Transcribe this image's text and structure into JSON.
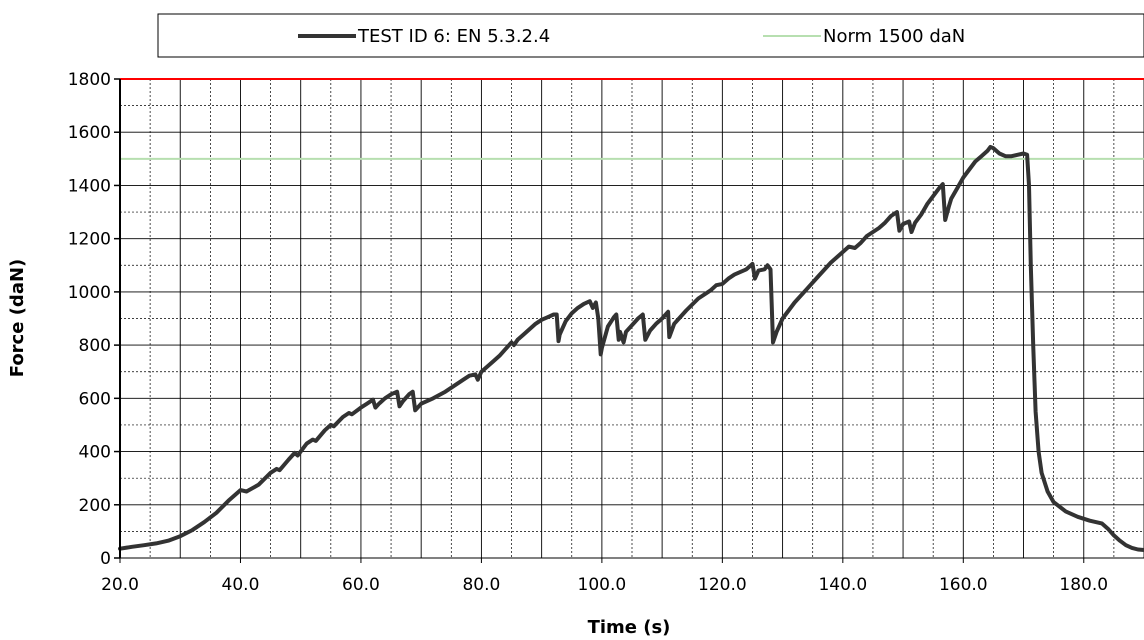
{
  "chart_data": {
    "type": "line",
    "xlabel": "Time (s)",
    "ylabel": "Force (daN)",
    "xlim": [
      20.0,
      190.0
    ],
    "ylim": [
      0,
      1800
    ],
    "x_ticks": [
      "20.0",
      "40.0",
      "60.0",
      "80.0",
      "100.0",
      "120.0",
      "140.0",
      "160.0",
      "180.0"
    ],
    "y_ticks": [
      "0",
      "200",
      "400",
      "600",
      "800",
      "1000",
      "1200",
      "1400",
      "1600",
      "1800"
    ],
    "grid": true,
    "legend_position": "top",
    "reference_lines": [
      {
        "name": "Norm 1500 daN",
        "y": 1500,
        "color": "#b7dfb0"
      },
      {
        "name": "",
        "y": 1800,
        "color": "#ff0000"
      }
    ],
    "series": [
      {
        "name": "TEST ID 6: EN 5.3.2.4",
        "color": "#333333",
        "points": [
          [
            20.0,
            35
          ],
          [
            22.0,
            42
          ],
          [
            24.0,
            48
          ],
          [
            26.0,
            55
          ],
          [
            28.0,
            65
          ],
          [
            30.0,
            82
          ],
          [
            32.0,
            105
          ],
          [
            34.0,
            135
          ],
          [
            36.0,
            170
          ],
          [
            38.0,
            215
          ],
          [
            40.0,
            255
          ],
          [
            41.0,
            250
          ],
          [
            43.0,
            275
          ],
          [
            45.0,
            320
          ],
          [
            46.0,
            335
          ],
          [
            46.5,
            330
          ],
          [
            48.0,
            370
          ],
          [
            49.0,
            395
          ],
          [
            49.5,
            385
          ],
          [
            51.0,
            430
          ],
          [
            52.0,
            445
          ],
          [
            52.5,
            440
          ],
          [
            54.0,
            480
          ],
          [
            55.0,
            500
          ],
          [
            55.5,
            495
          ],
          [
            57.0,
            530
          ],
          [
            58.0,
            545
          ],
          [
            58.5,
            540
          ],
          [
            60.0,
            565
          ],
          [
            61.0,
            580
          ],
          [
            62.0,
            595
          ],
          [
            62.4,
            565
          ],
          [
            63.0,
            580
          ],
          [
            64.0,
            600
          ],
          [
            65.0,
            615
          ],
          [
            66.0,
            625
          ],
          [
            66.4,
            570
          ],
          [
            67.0,
            590
          ],
          [
            68.0,
            615
          ],
          [
            68.6,
            625
          ],
          [
            69.0,
            555
          ],
          [
            70.0,
            580
          ],
          [
            72.0,
            600
          ],
          [
            74.0,
            625
          ],
          [
            75.0,
            640
          ],
          [
            76.0,
            655
          ],
          [
            77.0,
            670
          ],
          [
            78.0,
            685
          ],
          [
            79.0,
            690
          ],
          [
            79.4,
            670
          ],
          [
            80.0,
            700
          ],
          [
            82.0,
            740
          ],
          [
            83.0,
            760
          ],
          [
            84.0,
            785
          ],
          [
            85.0,
            810
          ],
          [
            85.4,
            800
          ],
          [
            86.0,
            820
          ],
          [
            87.0,
            840
          ],
          [
            88.0,
            860
          ],
          [
            89.0,
            880
          ],
          [
            90.0,
            895
          ],
          [
            91.0,
            905
          ],
          [
            92.0,
            915
          ],
          [
            92.5,
            915
          ],
          [
            92.8,
            815
          ],
          [
            93.0,
            840
          ],
          [
            94.0,
            890
          ],
          [
            95.0,
            920
          ],
          [
            96.0,
            940
          ],
          [
            97.0,
            955
          ],
          [
            98.0,
            965
          ],
          [
            98.5,
            940
          ],
          [
            99.0,
            960
          ],
          [
            99.4,
            900
          ],
          [
            99.8,
            765
          ],
          [
            100.0,
            790
          ],
          [
            101.0,
            870
          ],
          [
            102.0,
            905
          ],
          [
            102.4,
            915
          ],
          [
            102.8,
            820
          ],
          [
            103.0,
            850
          ],
          [
            103.6,
            810
          ],
          [
            104.0,
            850
          ],
          [
            105.0,
            875
          ],
          [
            106.0,
            900
          ],
          [
            106.8,
            915
          ],
          [
            107.2,
            820
          ],
          [
            108.0,
            855
          ],
          [
            109.0,
            880
          ],
          [
            110.0,
            900
          ],
          [
            111.0,
            925
          ],
          [
            111.2,
            830
          ],
          [
            112.0,
            880
          ],
          [
            114.0,
            930
          ],
          [
            116.0,
            975
          ],
          [
            118.0,
            1005
          ],
          [
            119.0,
            1025
          ],
          [
            120.0,
            1030
          ],
          [
            121.0,
            1050
          ],
          [
            122.0,
            1065
          ],
          [
            124.0,
            1085
          ],
          [
            125.0,
            1105
          ],
          [
            125.4,
            1050
          ],
          [
            126.0,
            1080
          ],
          [
            127.0,
            1085
          ],
          [
            127.5,
            1100
          ],
          [
            128.0,
            1085
          ],
          [
            128.4,
            810
          ],
          [
            129.0,
            850
          ],
          [
            130.0,
            900
          ],
          [
            132.0,
            960
          ],
          [
            134.0,
            1010
          ],
          [
            136.0,
            1060
          ],
          [
            138.0,
            1110
          ],
          [
            140.0,
            1150
          ],
          [
            141.0,
            1170
          ],
          [
            142.0,
            1165
          ],
          [
            143.0,
            1185
          ],
          [
            144.0,
            1210
          ],
          [
            146.0,
            1240
          ],
          [
            147.0,
            1260
          ],
          [
            148.0,
            1285
          ],
          [
            149.0,
            1300
          ],
          [
            149.4,
            1230
          ],
          [
            150.0,
            1255
          ],
          [
            151.0,
            1265
          ],
          [
            151.4,
            1225
          ],
          [
            152.0,
            1260
          ],
          [
            153.0,
            1290
          ],
          [
            154.0,
            1330
          ],
          [
            155.0,
            1360
          ],
          [
            156.0,
            1390
          ],
          [
            156.6,
            1405
          ],
          [
            157.0,
            1270
          ],
          [
            157.6,
            1320
          ],
          [
            158.0,
            1350
          ],
          [
            159.0,
            1390
          ],
          [
            160.0,
            1430
          ],
          [
            161.0,
            1460
          ],
          [
            162.0,
            1490
          ],
          [
            163.0,
            1510
          ],
          [
            164.0,
            1530
          ],
          [
            164.5,
            1545
          ],
          [
            165.0,
            1540
          ],
          [
            166.0,
            1520
          ],
          [
            167.0,
            1510
          ],
          [
            168.0,
            1510
          ],
          [
            169.0,
            1515
          ],
          [
            170.0,
            1520
          ],
          [
            170.6,
            1515
          ],
          [
            170.9,
            1400
          ],
          [
            171.2,
            1100
          ],
          [
            171.6,
            800
          ],
          [
            172.0,
            550
          ],
          [
            172.5,
            400
          ],
          [
            173.0,
            320
          ],
          [
            174.0,
            250
          ],
          [
            175.0,
            210
          ],
          [
            177.0,
            175
          ],
          [
            179.0,
            155
          ],
          [
            181.0,
            140
          ],
          [
            183.0,
            130
          ],
          [
            184.0,
            110
          ],
          [
            185.0,
            85
          ],
          [
            186.0,
            65
          ],
          [
            187.0,
            48
          ],
          [
            188.0,
            38
          ],
          [
            189.0,
            32
          ],
          [
            190.0,
            30
          ]
        ]
      }
    ]
  }
}
